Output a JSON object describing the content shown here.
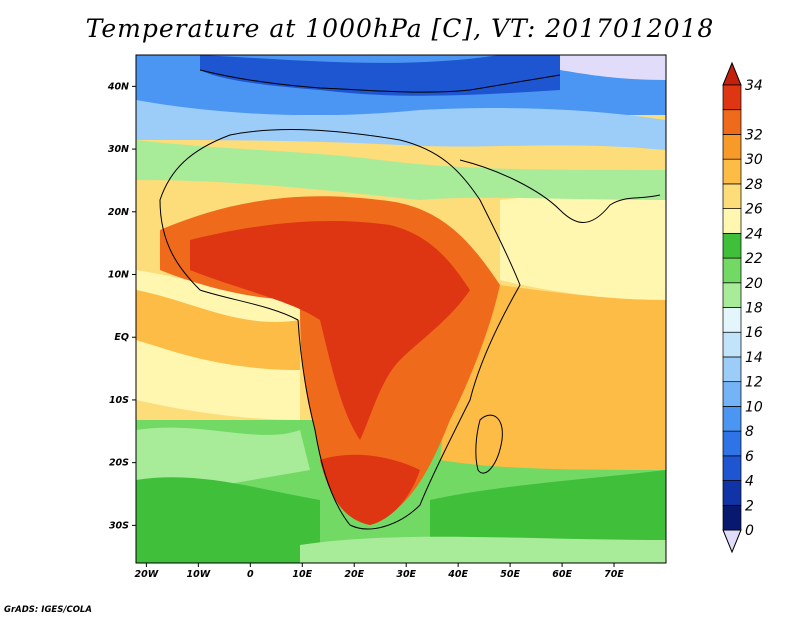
{
  "title": "Temperature at 1000hPa [C], VT: 2017012018",
  "credit": "GrADS: IGES/COLA",
  "map": {
    "lon_range": [
      -22,
      80
    ],
    "lat_range": [
      -36,
      45
    ],
    "lon_ticks": [
      {
        "v": -20,
        "label": "20W"
      },
      {
        "v": -10,
        "label": "10W"
      },
      {
        "v": 0,
        "label": "0"
      },
      {
        "v": 10,
        "label": "10E"
      },
      {
        "v": 20,
        "label": "20E"
      },
      {
        "v": 30,
        "label": "30E"
      },
      {
        "v": 40,
        "label": "40E"
      },
      {
        "v": 50,
        "label": "50E"
      },
      {
        "v": 60,
        "label": "60E"
      },
      {
        "v": 70,
        "label": "70E"
      }
    ],
    "lat_ticks": [
      {
        "v": 40,
        "label": "40N"
      },
      {
        "v": 30,
        "label": "30N"
      },
      {
        "v": 20,
        "label": "20N"
      },
      {
        "v": 10,
        "label": "10N"
      },
      {
        "v": 0,
        "label": "EQ"
      },
      {
        "v": -10,
        "label": "10S"
      },
      {
        "v": -20,
        "label": "20S"
      },
      {
        "v": -30,
        "label": "30S"
      }
    ]
  },
  "colorbar": {
    "levels": [
      {
        "value": 0,
        "label": "0",
        "color": "#06196e"
      },
      {
        "value": 2,
        "label": "2",
        "color": "#1133a8"
      },
      {
        "value": 4,
        "label": "4",
        "color": "#1e55d0"
      },
      {
        "value": 6,
        "label": "6",
        "color": "#2e74e6"
      },
      {
        "value": 8,
        "label": "8",
        "color": "#4a96f2"
      },
      {
        "value": 10,
        "label": "10",
        "color": "#74b3f6"
      },
      {
        "value": 12,
        "label": "12",
        "color": "#9ccdf9"
      },
      {
        "value": 14,
        "label": "14",
        "color": "#c2e4fb"
      },
      {
        "value": 16,
        "label": "16",
        "color": "#e2f6fb"
      },
      {
        "value": 18,
        "label": "18",
        "color": "#a8ec9a"
      },
      {
        "value": 20,
        "label": "20",
        "color": "#72d964"
      },
      {
        "value": 22,
        "label": "22",
        "color": "#3fbf3a"
      },
      {
        "value": 24,
        "label": "24",
        "color": "#fff6b0"
      },
      {
        "value": 26,
        "label": "26",
        "color": "#fddc7a"
      },
      {
        "value": 28,
        "label": "28",
        "color": "#fcbc46"
      },
      {
        "value": 30,
        "label": "30",
        "color": "#f79a2a"
      },
      {
        "value": 32,
        "label": "32",
        "color": "#f06a1c"
      },
      {
        "value": 34,
        "label": "34",
        "color": "#de3612"
      }
    ],
    "below_color": "#e2dcfb",
    "above_color": "#c4200c"
  }
}
